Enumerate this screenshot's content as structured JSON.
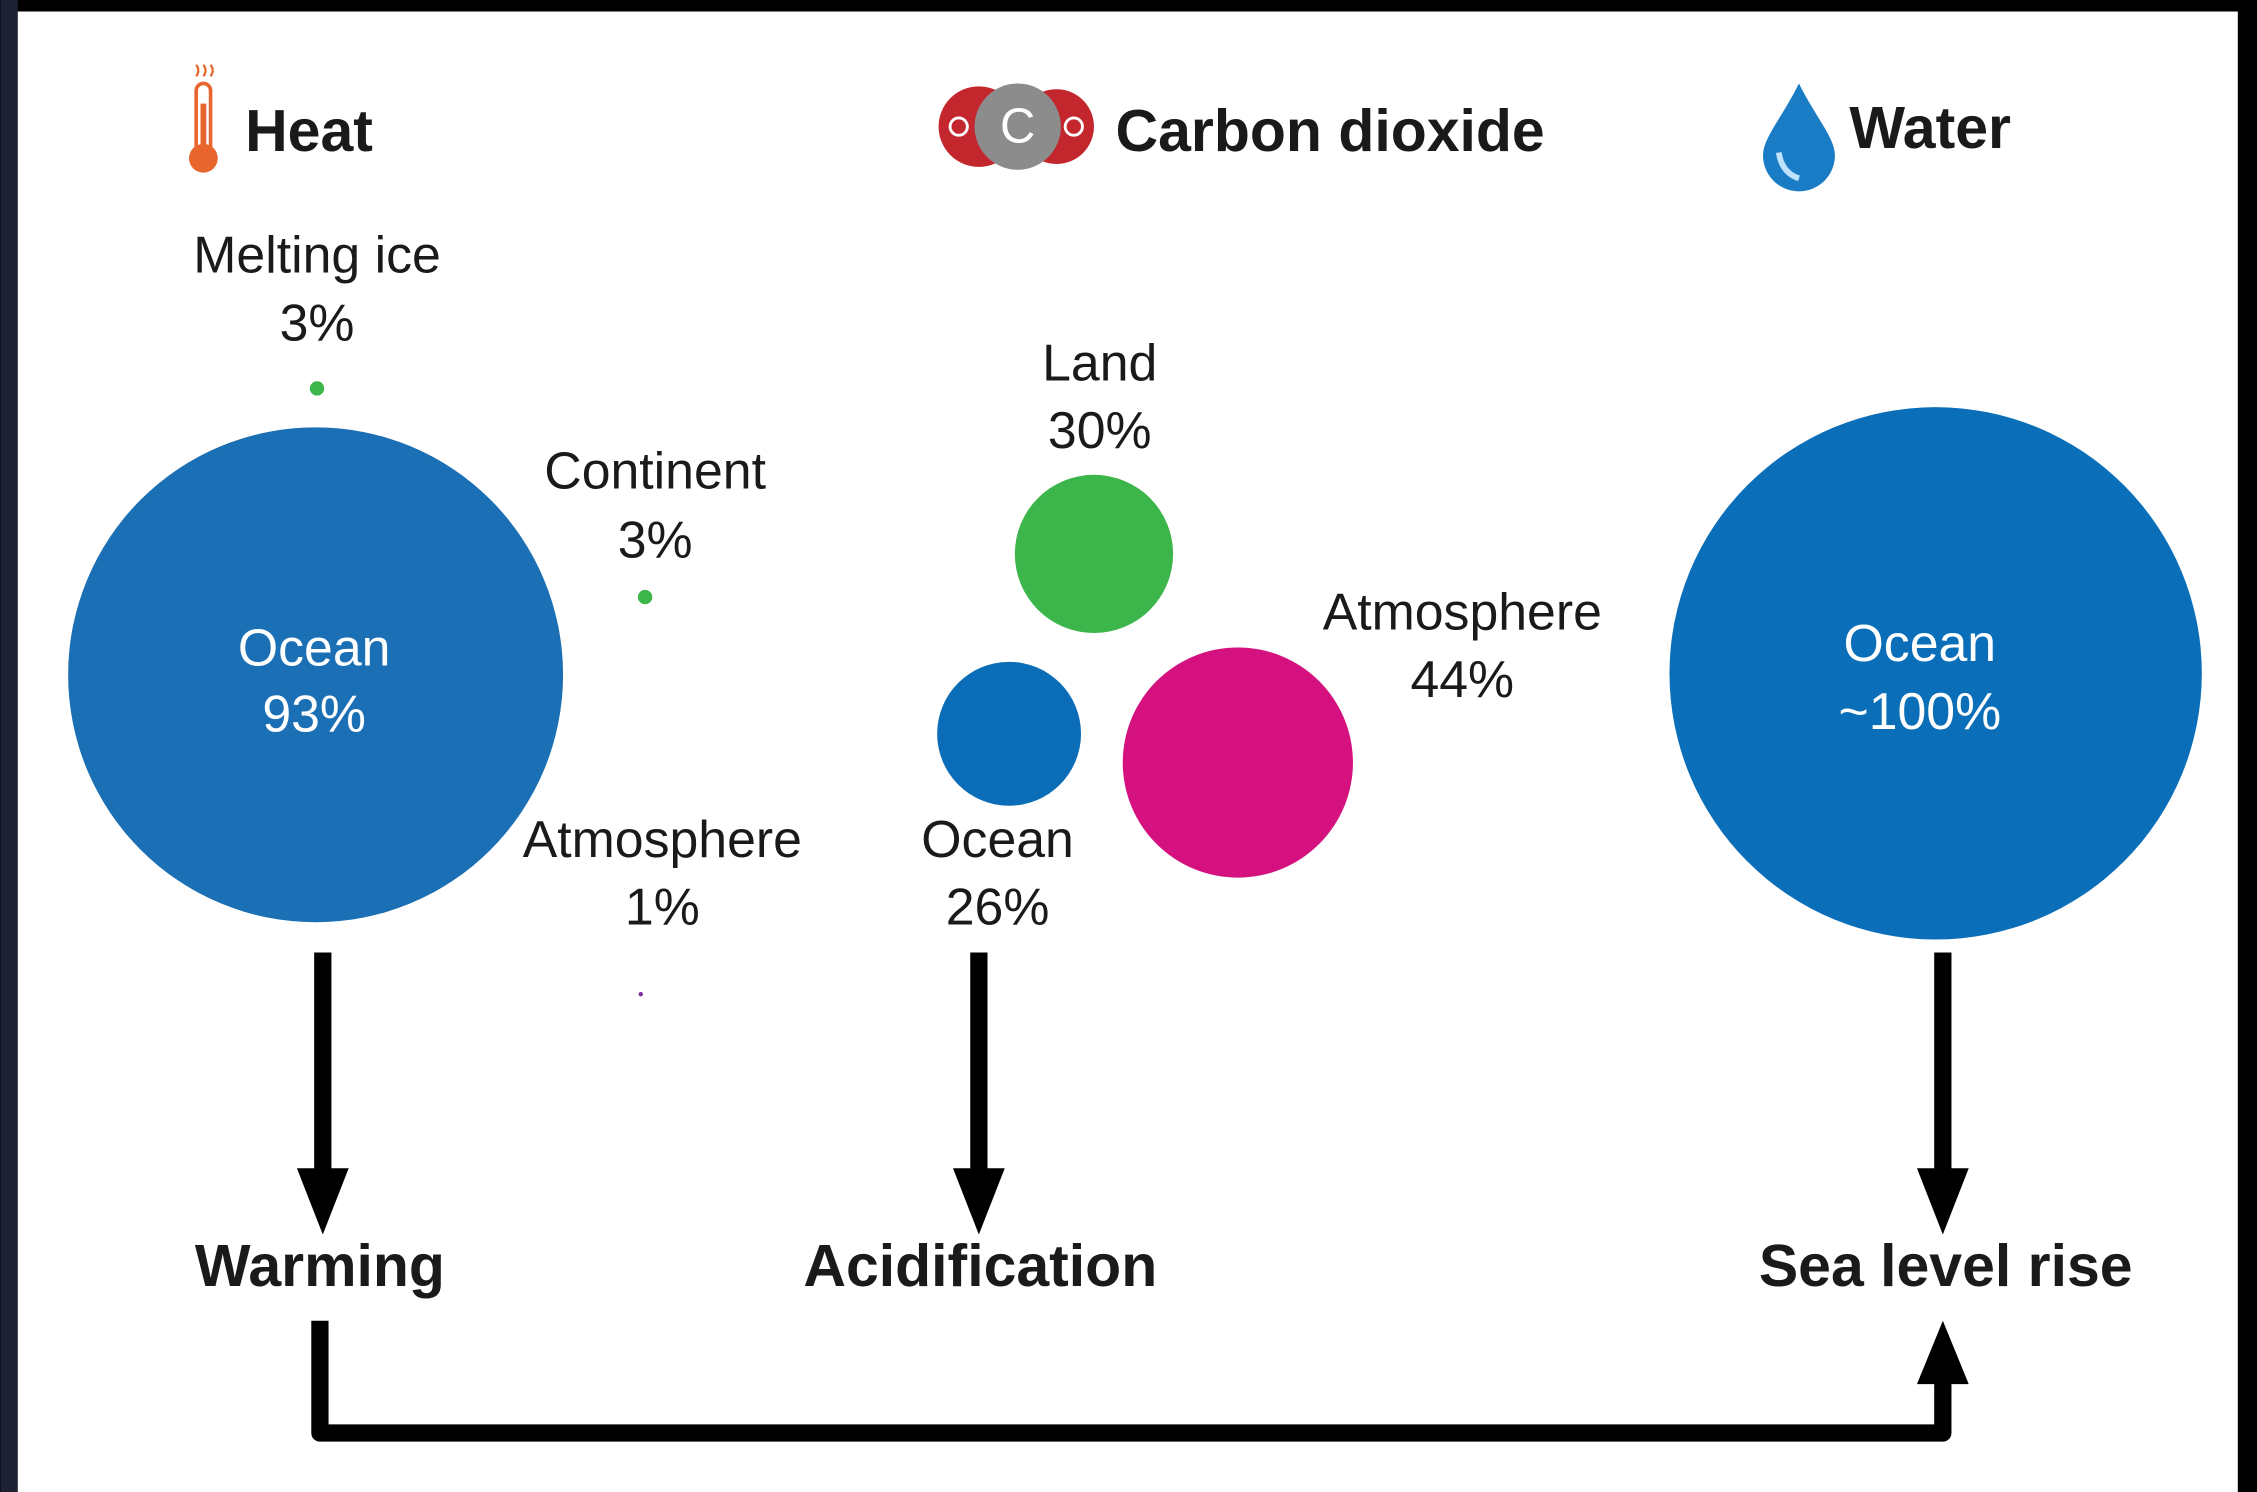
{
  "groups": [
    {
      "title": "Heat",
      "items": [
        {
          "name": "Melting ice",
          "value": "3%"
        },
        {
          "name": "Continent",
          "value": "3%"
        },
        {
          "name": "Ocean",
          "value": "93%"
        },
        {
          "name": "Atmosphere",
          "value": "1%"
        }
      ],
      "outcome": "Warming"
    },
    {
      "title": "Carbon dioxide",
      "icon_label": "C",
      "items": [
        {
          "name": "Land",
          "value": "30%"
        },
        {
          "name": "Ocean",
          "value": "26%"
        },
        {
          "name": "Atmosphere",
          "value": "44%"
        }
      ],
      "outcome": "Acidification"
    },
    {
      "title": "Water",
      "items": [
        {
          "name": "Ocean",
          "value": "~100%"
        }
      ],
      "outcome": "Sea level rise"
    }
  ]
}
